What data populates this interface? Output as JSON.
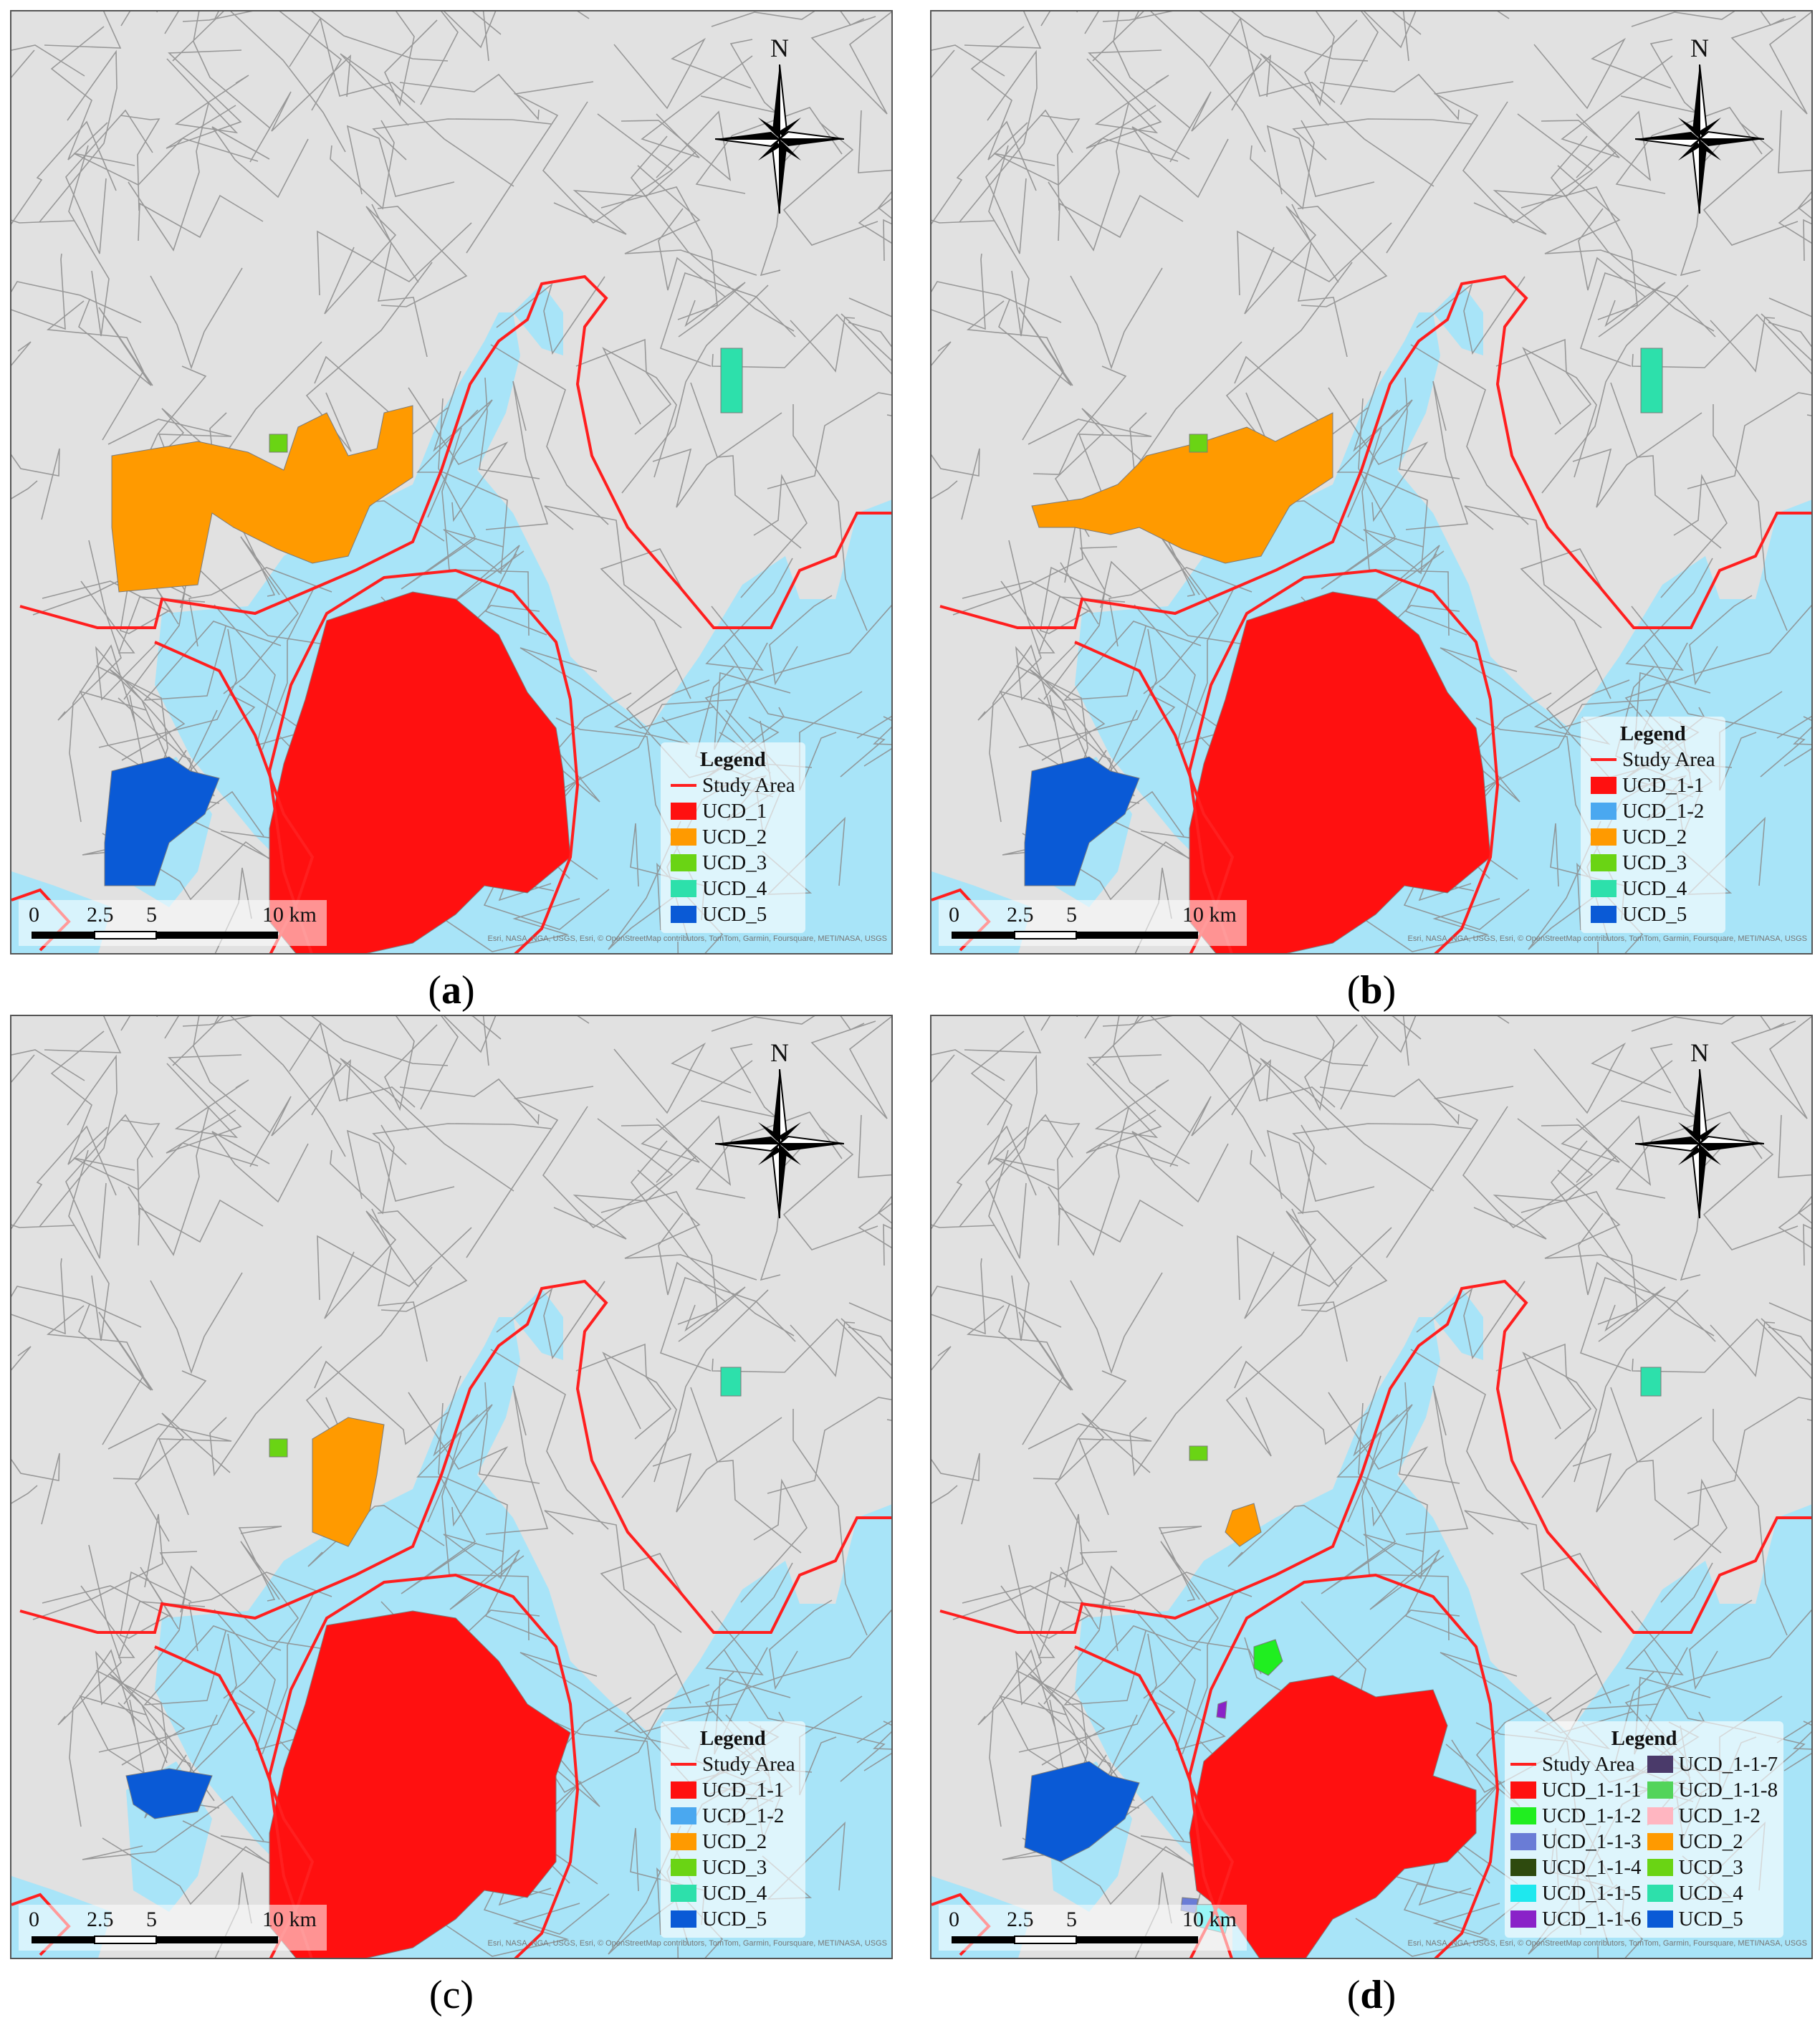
{
  "panels": [
    {
      "id": "a",
      "caption": "a",
      "legend": {
        "title": "Legend",
        "boundary": "Study Area",
        "items": [
          {
            "label": "UCD_1",
            "color": "#ff1010"
          },
          {
            "label": "UCD_2",
            "color": "#ff9a00"
          },
          {
            "label": "UCD_3",
            "color": "#6ad414"
          },
          {
            "label": "UCD_4",
            "color": "#2de0ab"
          },
          {
            "label": "UCD_5",
            "color": "#0a5ad6"
          }
        ]
      }
    },
    {
      "id": "b",
      "caption": "b",
      "legend": {
        "title": "Legend",
        "boundary": "Study Area",
        "items": [
          {
            "label": "UCD_1-1",
            "color": "#ff1010"
          },
          {
            "label": "UCD_1-2",
            "color": "#4aa8f0"
          },
          {
            "label": "UCD_2",
            "color": "#ff9a00"
          },
          {
            "label": "UCD_3",
            "color": "#6ad414"
          },
          {
            "label": "UCD_4",
            "color": "#2de0ab"
          },
          {
            "label": "UCD_5",
            "color": "#0a5ad6"
          }
        ]
      }
    },
    {
      "id": "c",
      "caption": "(c)",
      "legend": {
        "title": "Legend",
        "boundary": "Study Area",
        "items": [
          {
            "label": "UCD_1-1",
            "color": "#ff1010"
          },
          {
            "label": "UCD_1-2",
            "color": "#4aa8f0"
          },
          {
            "label": "UCD_2",
            "color": "#ff9a00"
          },
          {
            "label": "UCD_3",
            "color": "#6ad414"
          },
          {
            "label": "UCD_4",
            "color": "#2de0ab"
          },
          {
            "label": "UCD_5",
            "color": "#0a5ad6"
          }
        ]
      }
    },
    {
      "id": "d",
      "caption": "d",
      "legend": {
        "title": "Legend",
        "boundary": "Study Area",
        "col1": [
          {
            "label": "UCD_1-1-1",
            "color": "#ff1010"
          },
          {
            "label": "UCD_1-1-2",
            "color": "#20ee20"
          },
          {
            "label": "UCD_1-1-3",
            "color": "#6a7cd6"
          },
          {
            "label": "UCD_1-1-4",
            "color": "#2e4a0e"
          },
          {
            "label": "UCD_1-1-5",
            "color": "#1ee8ee"
          },
          {
            "label": "UCD_1-1-6",
            "color": "#8a22c8"
          }
        ],
        "col2": [
          {
            "label": "UCD_1-1-7",
            "color": "#4a3a6a"
          },
          {
            "label": "UCD_1-1-8",
            "color": "#52d45a"
          },
          {
            "label": "UCD_1-2",
            "color": "#ffb6c1"
          },
          {
            "label": "UCD_2",
            "color": "#ff9a00"
          },
          {
            "label": "UCD_3",
            "color": "#6ad414"
          },
          {
            "label": "UCD_4",
            "color": "#2de0ab"
          },
          {
            "label": "UCD_5",
            "color": "#0a5ad6"
          }
        ]
      }
    }
  ],
  "north_label": "N",
  "scale": {
    "labels": [
      "0",
      "2.5",
      "5",
      "10 km"
    ]
  },
  "attribution": "Esri, NASA, NGA, USGS, Esri, © OpenStreetMap contributors, TomTom, Garmin, Foursquare, METI/NASA, USGS",
  "colors": {
    "land": "#e1e1e1",
    "water": "#a8e4f8",
    "road": "#8c8c8c",
    "boundary": "#ff1f1f"
  }
}
